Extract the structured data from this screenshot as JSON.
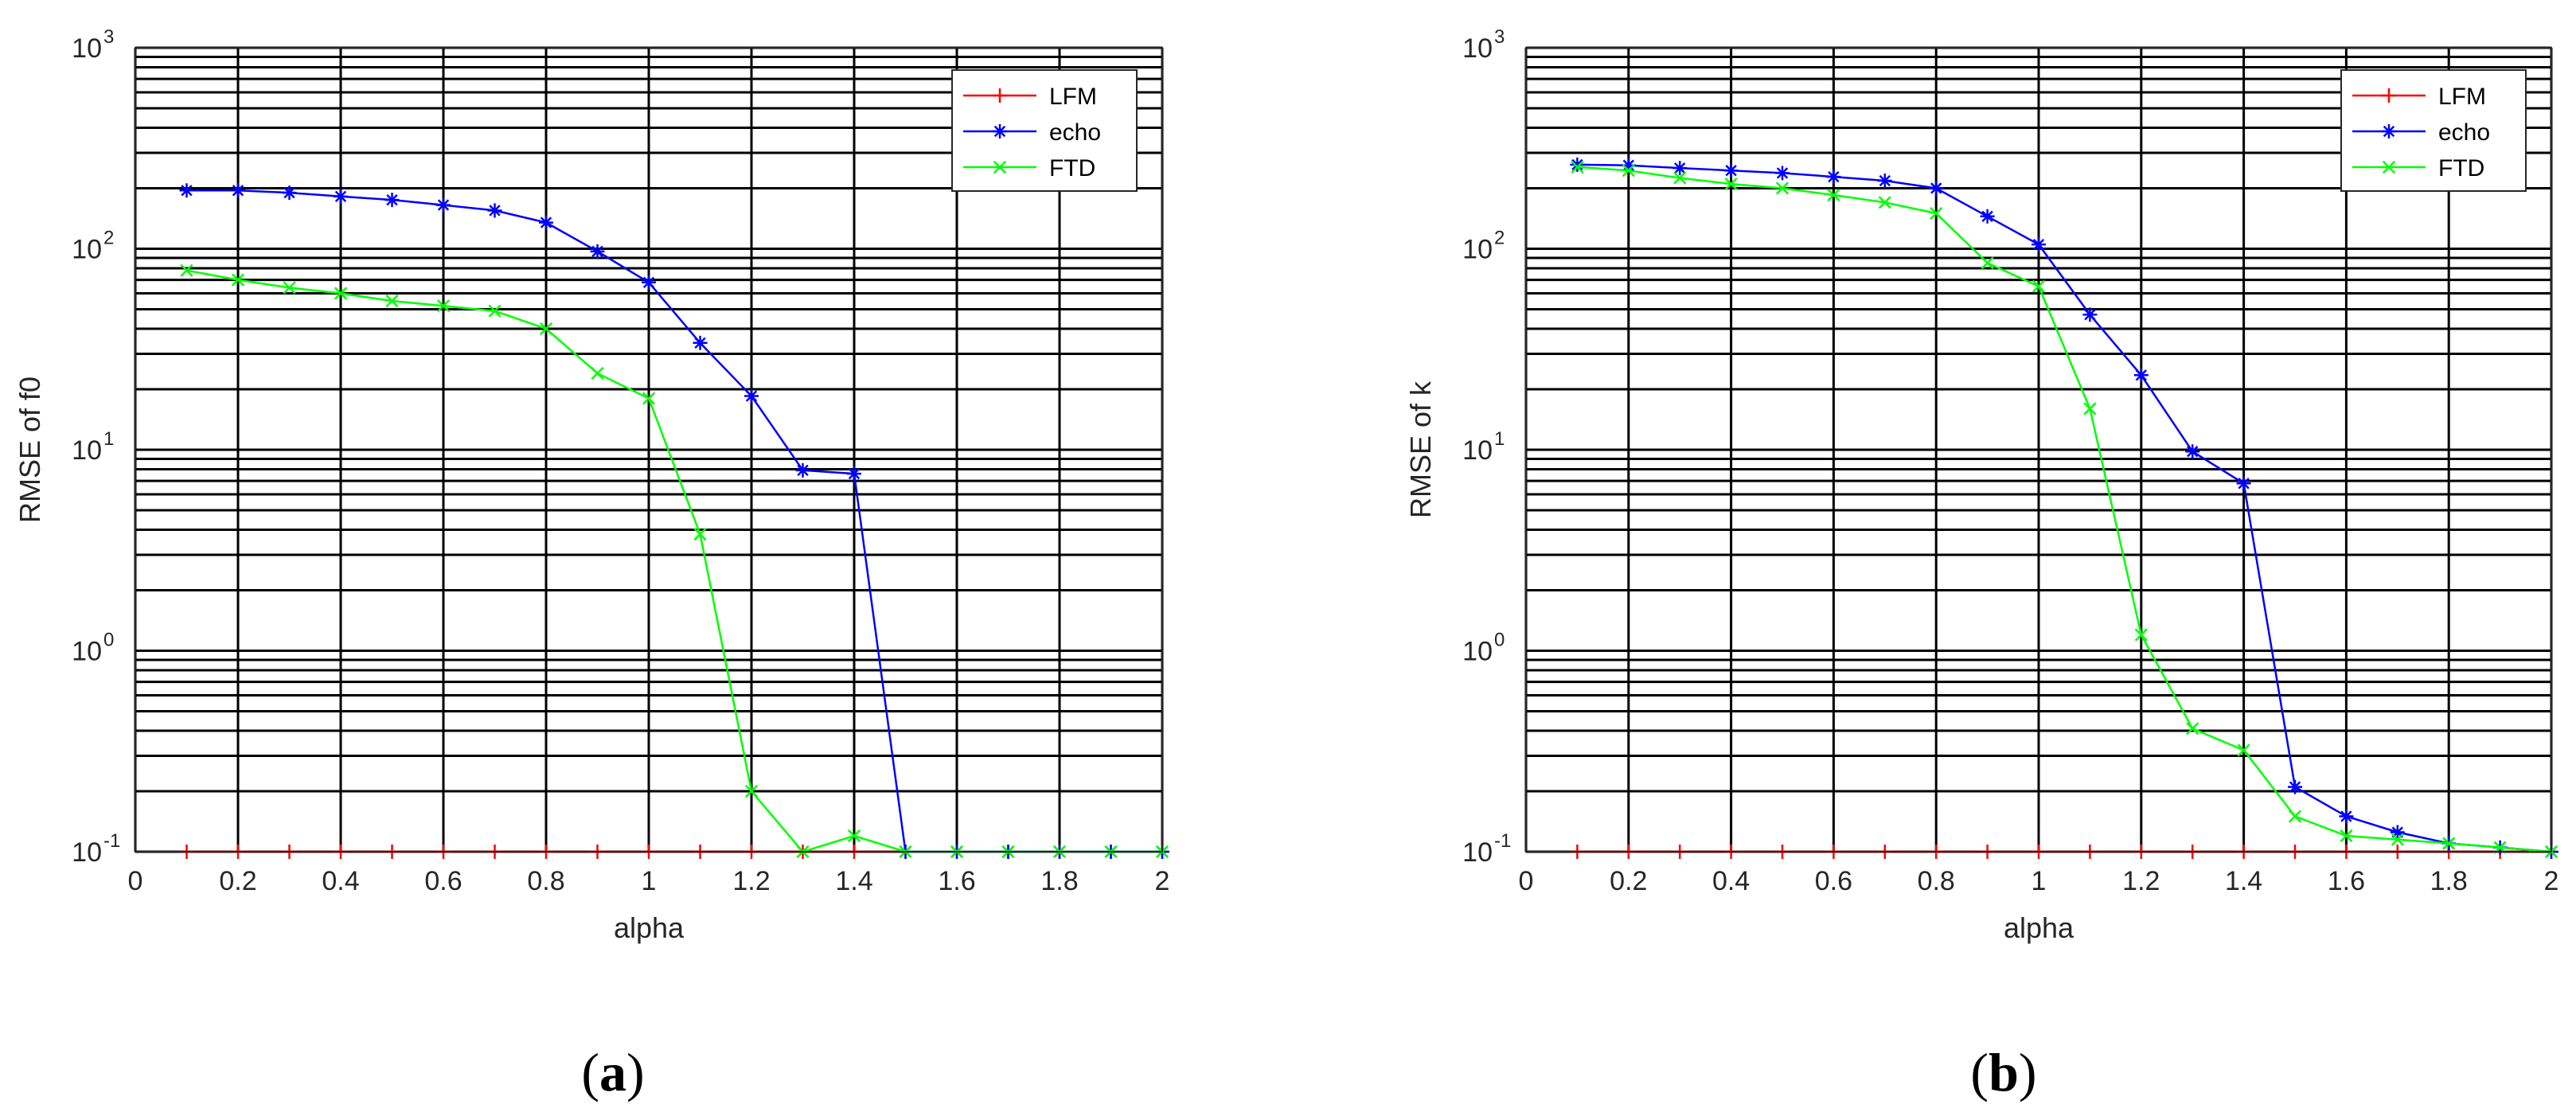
{
  "charts": [
    {
      "caption_open": "(",
      "caption_letter": "a",
      "caption_close": ")"
    },
    {
      "caption_open": "(",
      "caption_letter": "b",
      "caption_close": ")"
    }
  ],
  "chart_data": [
    {
      "type": "line",
      "title": "",
      "xlabel": "alpha",
      "ylabel": "RMSE of f0",
      "yscale": "log",
      "xlim": [
        0,
        2
      ],
      "ylim": [
        0.1,
        1000
      ],
      "grid": true,
      "legend_position": "top-right",
      "x_ticks": [
        "0",
        "0.2",
        "0.4",
        "0.6",
        "0.8",
        "1",
        "1.2",
        "1.4",
        "1.6",
        "1.8",
        "2"
      ],
      "y_ticks": [
        {
          "base": "10",
          "exp": "-1"
        },
        {
          "base": "10",
          "exp": "0"
        },
        {
          "base": "10",
          "exp": "1"
        },
        {
          "base": "10",
          "exp": "2"
        },
        {
          "base": "10",
          "exp": "3"
        }
      ],
      "x": [
        0.1,
        0.2,
        0.3,
        0.4,
        0.5,
        0.6,
        0.7,
        0.8,
        0.9,
        1.0,
        1.1,
        1.2,
        1.3,
        1.4,
        1.5,
        1.6,
        1.7,
        1.8,
        1.9,
        2.0
      ],
      "series": [
        {
          "name": "LFM",
          "color": "#ff0000",
          "marker": "plus",
          "values": [
            0.1,
            0.1,
            0.1,
            0.1,
            0.1,
            0.1,
            0.1,
            0.1,
            0.1,
            0.1,
            0.1,
            0.1,
            0.1,
            0.1,
            0.1,
            0.1,
            0.1,
            0.1,
            0.1,
            0.1
          ]
        },
        {
          "name": "echo",
          "color": "#0000ff",
          "marker": "star",
          "values": [
            195,
            195,
            190,
            182,
            175,
            165,
            155,
            135,
            97,
            68,
            34,
            18.5,
            7.9,
            7.6,
            0.1,
            0.1,
            0.1,
            0.1,
            0.1,
            0.1
          ]
        },
        {
          "name": "FTD",
          "color": "#00ff00",
          "marker": "x",
          "values": [
            78,
            70,
            64,
            60,
            55,
            52,
            49,
            40,
            24,
            18,
            3.8,
            0.2,
            0.1,
            0.12,
            0.1,
            0.1,
            0.1,
            0.1,
            0.1,
            0.1
          ]
        }
      ]
    },
    {
      "type": "line",
      "title": "",
      "xlabel": "alpha",
      "ylabel": "RMSE of k",
      "yscale": "log",
      "xlim": [
        0,
        2
      ],
      "ylim": [
        0.1,
        1000
      ],
      "grid": true,
      "legend_position": "top-right",
      "x_ticks": [
        "0",
        "0.2",
        "0.4",
        "0.6",
        "0.8",
        "1",
        "1.2",
        "1.4",
        "1.6",
        "1.8",
        "2"
      ],
      "y_ticks": [
        {
          "base": "10",
          "exp": "-1"
        },
        {
          "base": "10",
          "exp": "0"
        },
        {
          "base": "10",
          "exp": "1"
        },
        {
          "base": "10",
          "exp": "2"
        },
        {
          "base": "10",
          "exp": "3"
        }
      ],
      "x": [
        0.1,
        0.2,
        0.3,
        0.4,
        0.5,
        0.6,
        0.7,
        0.8,
        0.9,
        1.0,
        1.1,
        1.2,
        1.3,
        1.4,
        1.5,
        1.6,
        1.7,
        1.8,
        1.9,
        2.0
      ],
      "series": [
        {
          "name": "LFM",
          "color": "#ff0000",
          "marker": "plus",
          "values": [
            0.1,
            0.1,
            0.1,
            0.1,
            0.1,
            0.1,
            0.1,
            0.1,
            0.1,
            0.1,
            0.1,
            0.1,
            0.1,
            0.1,
            0.1,
            0.1,
            0.1,
            0.1,
            0.1,
            0.1
          ]
        },
        {
          "name": "echo",
          "color": "#0000ff",
          "marker": "star",
          "values": [
            262,
            260,
            252,
            245,
            238,
            228,
            218,
            200,
            145,
            105,
            47,
            23.5,
            9.8,
            6.8,
            0.21,
            0.15,
            0.125,
            0.11,
            0.105,
            0.1
          ]
        },
        {
          "name": "FTD",
          "color": "#00ff00",
          "marker": "x",
          "values": [
            255,
            245,
            225,
            210,
            200,
            185,
            170,
            150,
            85,
            65,
            16,
            1.2,
            0.41,
            0.32,
            0.15,
            0.12,
            0.115,
            0.11,
            0.105,
            0.1
          ]
        }
      ]
    }
  ]
}
